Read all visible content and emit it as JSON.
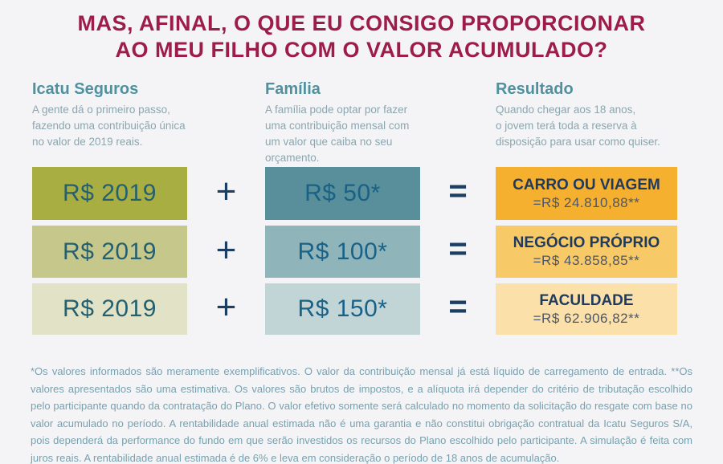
{
  "title": {
    "line1": "MAS, AFINAL, O QUE EU CONSIGO PROPORCIONAR",
    "line2": "AO MEU FILHO COM O VALOR ACUMULADO?"
  },
  "columns": [
    {
      "heading": "Icatu Seguros",
      "description": "A gente dá o primeiro passo,\nfazendo uma contribuição única\nno valor de 2019 reais."
    },
    {
      "heading": "Família",
      "description": "A família pode optar por fazer\numa contribuição mensal com\num valor que caiba no seu\norçamento."
    },
    {
      "heading": "Resultado",
      "description": "Quando chegar aos 18 anos,\no jovem terá toda a reserva à\ndisposição para usar como quiser."
    }
  ],
  "operators": {
    "plus": "+",
    "equals": "="
  },
  "rows": [
    {
      "single_contribution": "R$ 2019",
      "monthly_contribution": "R$ 50*",
      "result_title": "CARRO OU VIAGEM",
      "result_value": "=R$ 24.810,88**"
    },
    {
      "single_contribution": "R$ 2019",
      "monthly_contribution": "R$ 100*",
      "result_title": "NEGÓCIO PRÓPRIO",
      "result_value": "=R$ 43.858,85**"
    },
    {
      "single_contribution": "R$ 2019",
      "monthly_contribution": "R$ 150*",
      "result_title": "FACULDADE",
      "result_value": "=R$ 62.906,82**"
    }
  ],
  "footnote": "*Os valores informados são meramente exemplificativos. O valor da contribuição mensal já está líquido de carregamento de entrada. **Os valores apresentados são uma estimativa. Os valores são brutos de impostos, e a alíquota irá depender do critério de tributação escolhido pelo participante quando da contratação do Plano. O valor efetivo somente será calculado no momento da solicitação do resgate com base no valor acumulado no período. A rentabilidade anual estimada não é uma garantia e não constitui obrigação contratual da Icatu Seguros S/A, pois dependerá da performance do fundo em que serão investidos os recursos do Plano escolhido pelo participante. A simulação é feita com juros reais. A rentabilidade anual estimada é de 6% e leva em consideração o período de 18 anos de acumulação.",
  "colors": {
    "background": "#f4f4f6",
    "title": "#9d1c49",
    "heading_teal": "#4f919f",
    "body_text": "#8ba6b0",
    "operator_navy": "#1d3e63",
    "single_boxes": [
      "#a9ae43",
      "#c6c78b",
      "#e2e3c6"
    ],
    "monthly_boxes": [
      "#588f9a",
      "#8fb5bb",
      "#c1d4d6"
    ],
    "result_boxes": [
      "#f6b02f",
      "#f8c967",
      "#fbe1a9"
    ],
    "result_title_text": "#1e3a5e",
    "footnote_text": "#77a1af"
  }
}
